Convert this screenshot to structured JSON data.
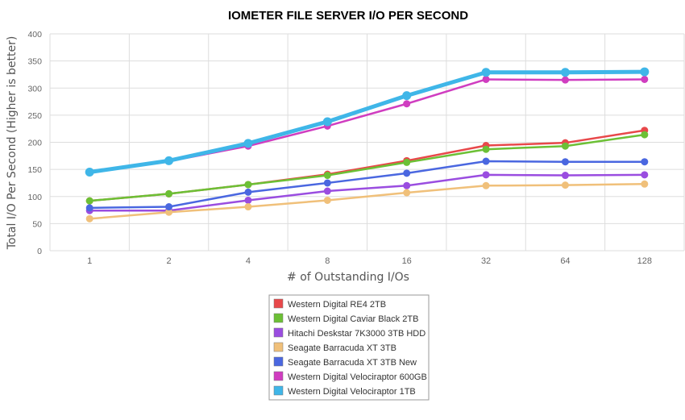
{
  "chart_data": {
    "type": "line",
    "title": "IOMETER FILE SERVER I/O PER SECOND",
    "xlabel": "# of Outstanding I/Os",
    "ylabel": "Total I/O Per Second (Higher is better)",
    "categories": [
      "1",
      "2",
      "4",
      "8",
      "16",
      "32",
      "64",
      "128"
    ],
    "ylim": [
      0,
      400
    ],
    "yticks": [
      0,
      50,
      100,
      150,
      200,
      250,
      300,
      350,
      400
    ],
    "grid": true,
    "legend_position": "bottom",
    "series": [
      {
        "name": "Western Digital RE4 2TB",
        "color": "#e8484a",
        "values": [
          92,
          105,
          122,
          141,
          166,
          194,
          199,
          222
        ]
      },
      {
        "name": "Western Digital Caviar Black 2TB",
        "color": "#6cc035",
        "values": [
          92,
          105,
          122,
          139,
          163,
          187,
          193,
          214
        ]
      },
      {
        "name": "Hitachi Deskstar 7K3000 3TB HDD",
        "color": "#9a4de0",
        "values": [
          74,
          74,
          93,
          110,
          120,
          140,
          139,
          140
        ]
      },
      {
        "name": "Seagate Barracuda XT 3TB",
        "color": "#f0c07a",
        "values": [
          59,
          71,
          81,
          93,
          107,
          120,
          121,
          123
        ]
      },
      {
        "name": "Seagate Barracuda XT 3TB New",
        "color": "#4a67e0",
        "values": [
          79,
          81,
          108,
          125,
          143,
          165,
          164,
          164
        ]
      },
      {
        "name": "Western Digital Velociraptor 600GB",
        "color": "#d03dc0",
        "values": [
          144,
          165,
          193,
          230,
          271,
          316,
          315,
          316
        ]
      },
      {
        "name": "Western Digital Velociraptor 1TB",
        "color": "#3fb6e8",
        "values": [
          145,
          166,
          198,
          238,
          286,
          329,
          329,
          330
        ]
      }
    ]
  }
}
